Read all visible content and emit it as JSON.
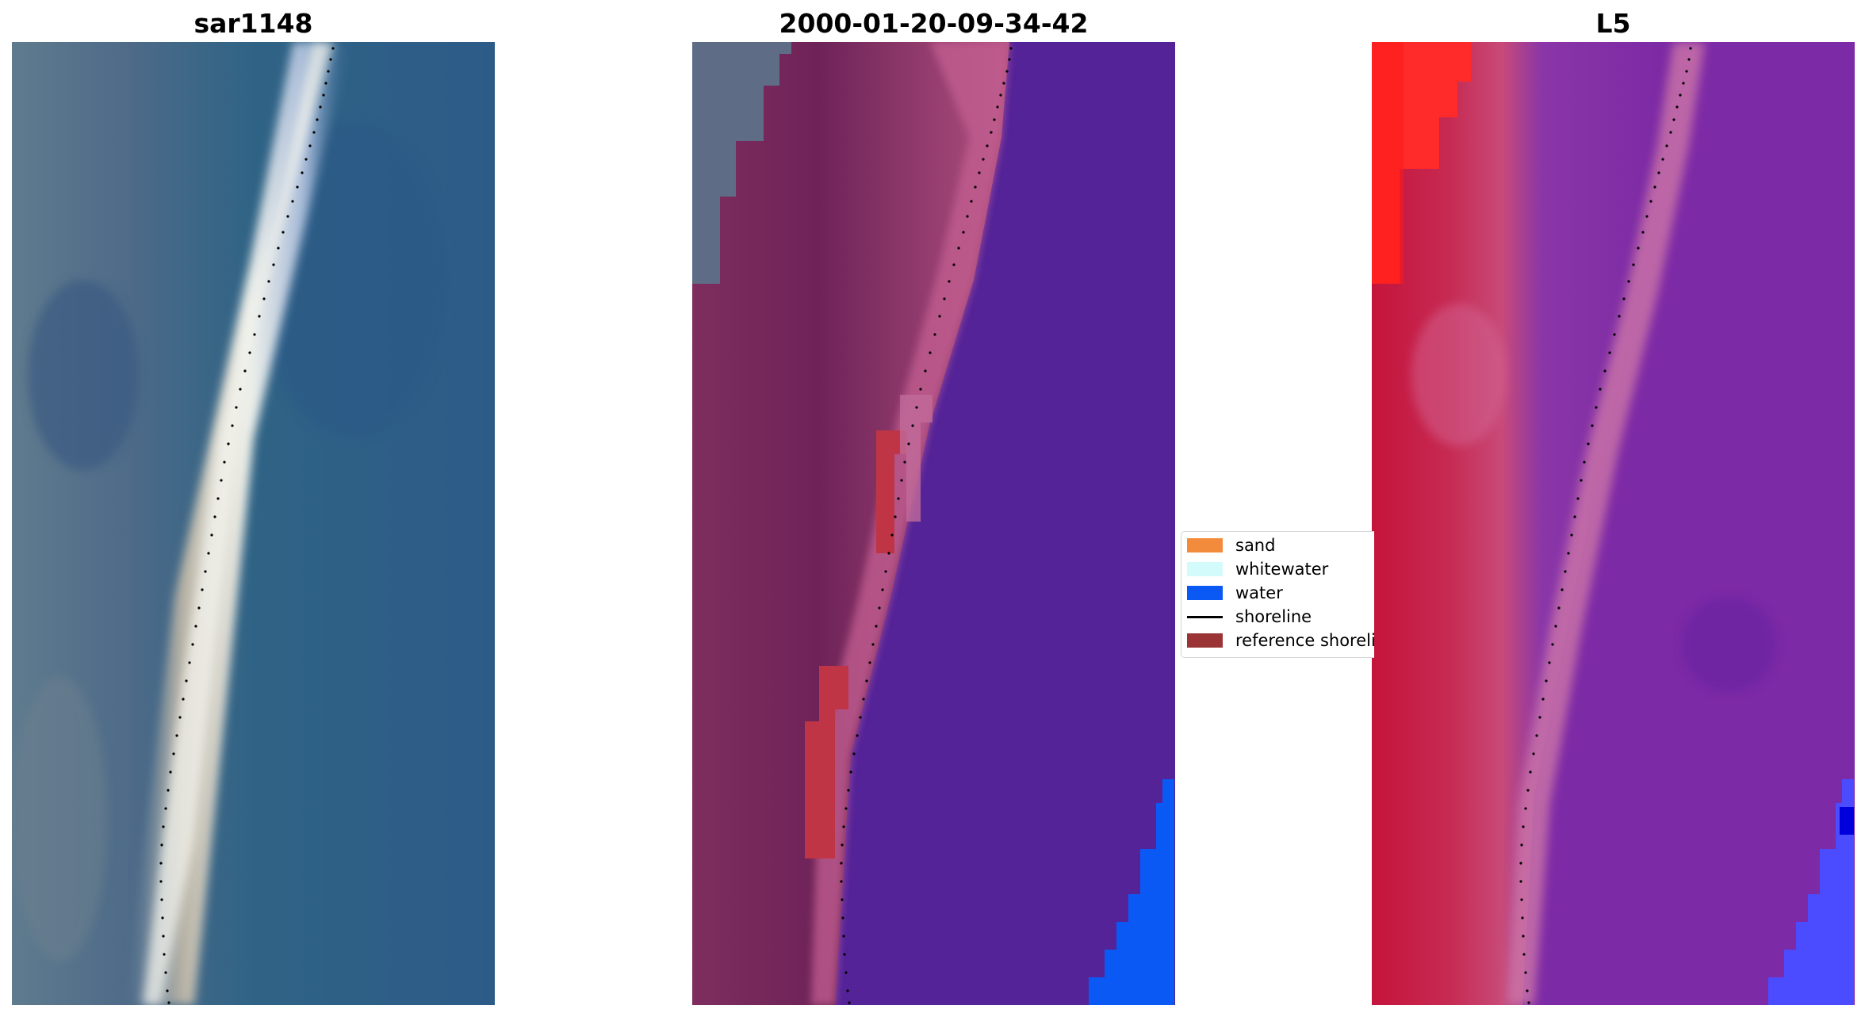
{
  "panels": [
    {
      "title": "sar1148"
    },
    {
      "title": "2000-01-20-09-34-42"
    },
    {
      "title": "L5"
    }
  ],
  "legend": {
    "items": [
      {
        "label": "sand",
        "color": "#f28c3c",
        "kind": "patch"
      },
      {
        "label": "whitewater",
        "color": "#d4fbfb",
        "kind": "patch"
      },
      {
        "label": "water",
        "color": "#0a59f5",
        "kind": "patch"
      },
      {
        "label": "shoreline",
        "color": "#000000",
        "kind": "line"
      },
      {
        "label": "reference shoreline",
        "color": "#9b3535",
        "kind": "patch"
      }
    ]
  },
  "colors": {
    "rgb_water": "#2f5d87",
    "rgb_sand": "#e6e0d6",
    "class_land": "#7a2c5e",
    "class_sand_overlay": "#c05a8a",
    "class_water": "#542398",
    "class_water_bright": "#0a59f5",
    "class_ref": "#c03545",
    "false_land": "#c5143c",
    "false_red": "#ff2a2a",
    "false_water": "#7d2aa6",
    "false_blue": "#4b4bff",
    "shoreline_dots": "#000000"
  }
}
